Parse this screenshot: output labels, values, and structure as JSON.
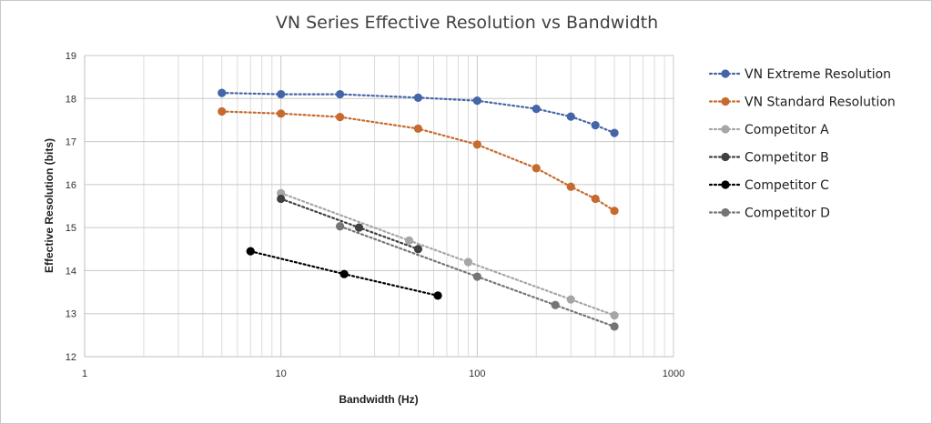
{
  "chart_data": {
    "type": "line",
    "title": "VN Series Effective Resolution vs Bandwidth",
    "xlabel": "Bandwidth (Hz)",
    "ylabel": "Effective Resolution (bits)",
    "xscale": "log",
    "xlim": [
      1,
      1000
    ],
    "ylim": [
      12,
      19
    ],
    "x_ticks": [
      "1",
      "10",
      "100",
      "1000"
    ],
    "y_ticks": [
      "12",
      "13",
      "14",
      "15",
      "16",
      "17",
      "18",
      "19"
    ],
    "grid": true,
    "legend_position": "right",
    "line_style": "dotted",
    "series": [
      {
        "name": "VN Extreme Resolution",
        "color": "#4565a8",
        "points": [
          [
            5,
            18.13
          ],
          [
            10,
            18.1
          ],
          [
            20,
            18.1
          ],
          [
            50,
            18.02
          ],
          [
            100,
            17.95
          ],
          [
            200,
            17.76
          ],
          [
            300,
            17.58
          ],
          [
            400,
            17.38
          ],
          [
            500,
            17.2
          ]
        ]
      },
      {
        "name": "VN Standard Resolution",
        "color": "#c76a2e",
        "points": [
          [
            5,
            17.7
          ],
          [
            10,
            17.65
          ],
          [
            20,
            17.57
          ],
          [
            50,
            17.3
          ],
          [
            100,
            16.93
          ],
          [
            200,
            16.38
          ],
          [
            300,
            15.95
          ],
          [
            400,
            15.67
          ],
          [
            500,
            15.39
          ]
        ]
      },
      {
        "name": "Competitor A",
        "color": "#a6a6a6",
        "points": [
          [
            10,
            15.8
          ],
          [
            45,
            14.7
          ],
          [
            90,
            14.2
          ],
          [
            300,
            13.33
          ],
          [
            500,
            12.96
          ]
        ]
      },
      {
        "name": "Competitor B",
        "color": "#404040",
        "points": [
          [
            10,
            15.67
          ],
          [
            25,
            15.0
          ],
          [
            50,
            14.5
          ]
        ]
      },
      {
        "name": "Competitor C",
        "color": "#000000",
        "points": [
          [
            7,
            14.45
          ],
          [
            21,
            13.92
          ],
          [
            63,
            13.42
          ]
        ]
      },
      {
        "name": "Competitor D",
        "color": "#757575",
        "points": [
          [
            20,
            15.03
          ],
          [
            100,
            13.86
          ],
          [
            250,
            13.2
          ],
          [
            500,
            12.7
          ]
        ]
      }
    ]
  }
}
